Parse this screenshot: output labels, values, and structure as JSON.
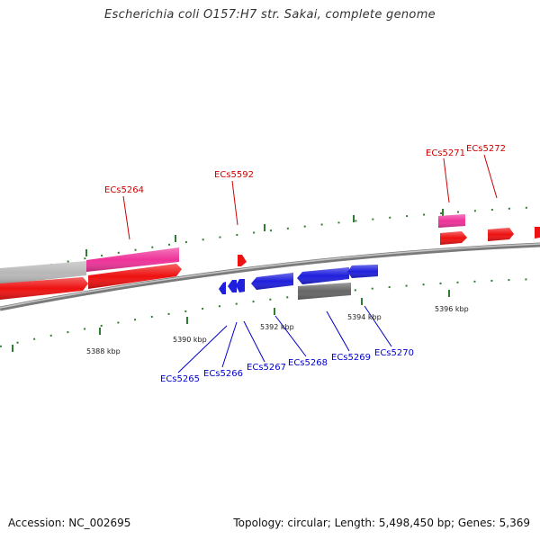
{
  "title": "Escherichia coli O157:H7 str. Sakai, complete genome",
  "footer": {
    "accession": "Accession: NC_002695",
    "stats": "Topology: circular; Length: 5,498,450 bp; Genes: 5,369"
  },
  "colors": {
    "backbone": "#8c8c8c",
    "outer_ticks": "#2e7d32",
    "label_top": "#cc0000",
    "label_bottom": "#0000cc",
    "gene_red": "#ee1111",
    "gene_pink": "#ee3399",
    "gene_gray": "#b8b8b8",
    "gene_blue": "#1f1fdd",
    "gene_dark": "#666666"
  },
  "scale_labels": [
    "5388 kbp",
    "5390 kbp",
    "5392 kbp",
    "5394 kbp",
    "5396 kbp"
  ],
  "gene_labels_top": [
    "ECs5264",
    "ECs5592",
    "ECs5271",
    "ECs5272"
  ],
  "gene_labels_bottom": [
    "ECs5265",
    "ECs5266",
    "ECs5267",
    "ECs5268",
    "ECs5269",
    "ECs5270"
  ]
}
